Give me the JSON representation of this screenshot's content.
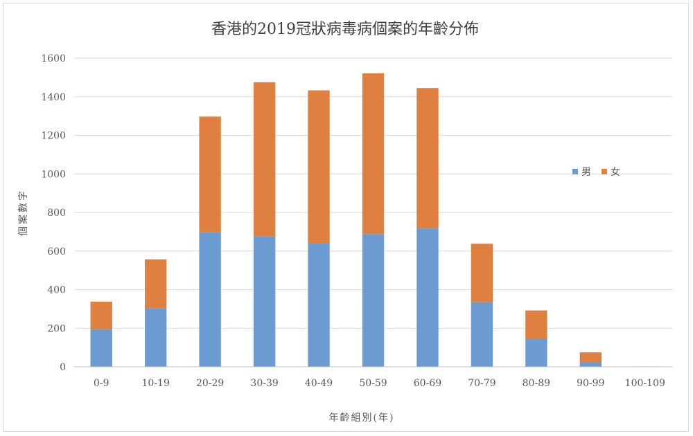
{
  "chart_data": {
    "type": "bar",
    "stacked": true,
    "title": "香港的2019冠狀病毒病個案的年齡分佈",
    "xlabel": "年齡組別(年)",
    "ylabel": "個案數字",
    "categories": [
      "0-9",
      "10-19",
      "20-29",
      "30-39",
      "40-49",
      "50-59",
      "60-69",
      "70-79",
      "80-89",
      "90-99",
      "100-109"
    ],
    "series": [
      {
        "name": "男",
        "color": "#6b9bd1",
        "values": [
          193,
          302,
          697,
          675,
          640,
          688,
          717,
          335,
          147,
          25,
          2
        ]
      },
      {
        "name": "女",
        "color": "#df8040",
        "values": [
          145,
          255,
          600,
          800,
          793,
          833,
          728,
          303,
          145,
          50,
          0
        ]
      }
    ],
    "ylim": [
      0,
      1600
    ],
    "yticks": [
      "0",
      "200",
      "400",
      "600",
      "800",
      "1000",
      "1200",
      "1400",
      "1600"
    ],
    "grid": true,
    "legend_position": "right"
  }
}
